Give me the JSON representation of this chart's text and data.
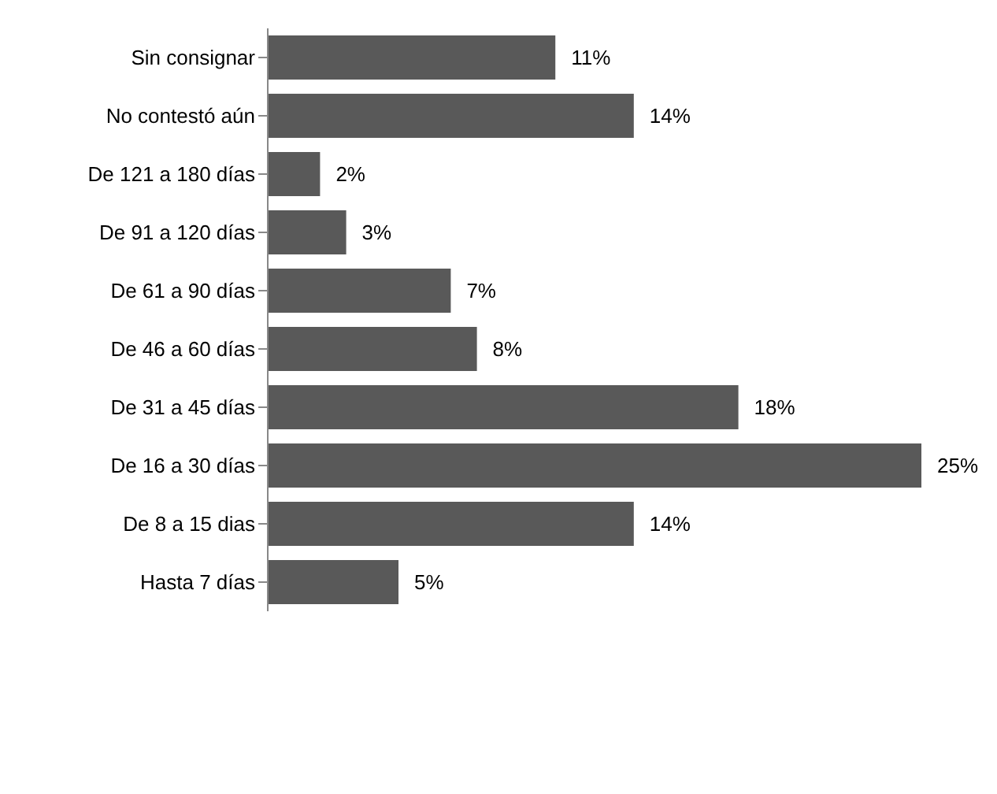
{
  "chart_data": {
    "type": "bar",
    "orientation": "horizontal",
    "tick_labels": "y",
    "categories": [
      "Sin consignar",
      "No contestó aún",
      "De 121 a 180 días",
      "De 91 a 120 días",
      "De 61 a 90 días",
      "De 46 a 60 días",
      "De 31 a 45 días",
      "De 16 a 30 días",
      "De 8 a 15 dias",
      "Hasta 7 días"
    ],
    "values": [
      11,
      14,
      2,
      3,
      7,
      8,
      18,
      25,
      14,
      5
    ],
    "value_labels": [
      "11%",
      "14%",
      "2%",
      "3%",
      "7%",
      "8%",
      "18%",
      "25%",
      "14%",
      "5%"
    ],
    "color": "#595959",
    "grid": false,
    "legend": false
  }
}
